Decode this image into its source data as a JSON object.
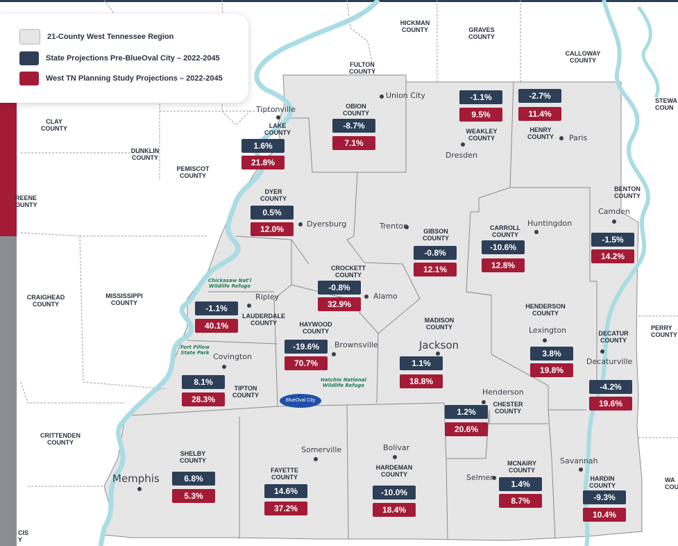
{
  "legend": {
    "region": "21-County West Tennessee Region",
    "state": "State Projections Pre-BlueOval City – 2022-2045",
    "study": "West TN Planning Study Projections – 2022-2045"
  },
  "colors": {
    "region_fill": "#e6e6e6",
    "state_badge": "#2d3e57",
    "study_badge": "#a31b36",
    "river": "#a9dce3"
  },
  "region_counties": [
    {
      "name": "LAKE\nCOUNTY",
      "state": "1.6%",
      "study": "21.8%"
    },
    {
      "name": "OBION\nCOUNTY",
      "state": "-8.7%",
      "study": "7.1%"
    },
    {
      "name": "WEAKLEY\nCOUNTY",
      "state": "-1.1%",
      "study": "9.5%"
    },
    {
      "name": "HENRY\nCOUNTY",
      "state": "-2.7%",
      "study": "11.4%"
    },
    {
      "name": "DYER\nCOUNTY",
      "state": "0.5%",
      "study": "12.0%"
    },
    {
      "name": "GIBSON\nCOUNTY",
      "state": "-0.8%",
      "study": "12.1%"
    },
    {
      "name": "CARROLL\nCOUNTY",
      "state": "-10.6%",
      "study": "12.8%"
    },
    {
      "name": "BENTON\nCOUNTY",
      "state": "-1.5%",
      "study": "14.2%"
    },
    {
      "name": "CROCKETT\nCOUNTY",
      "state": "-0.8%",
      "study": "32.9%"
    },
    {
      "name": "LAUDERDALE\nCOUNTY",
      "state": "-1.1%",
      "study": "40.1%"
    },
    {
      "name": "HAYWOOD\nCOUNTY",
      "state": "-19.6%",
      "study": "70.7%"
    },
    {
      "name": "MADISON\nCOUNTY",
      "state": "1.1%",
      "study": "18.8%"
    },
    {
      "name": "HENDERSON\nCOUNTY",
      "state": "3.8%",
      "study": "19.8%"
    },
    {
      "name": "DECATUR\nCOUNTY",
      "state": "-4.2%",
      "study": "19.6%"
    },
    {
      "name": "TIPTON\nCOUNTY",
      "state": "8.1%",
      "study": "28.3%"
    },
    {
      "name": "CHESTER\nCOUNTY",
      "state": "1.2%",
      "study": "20.6%"
    },
    {
      "name": "SHELBY\nCOUNTY",
      "state": "6.8%",
      "study": "5.3%"
    },
    {
      "name": "FAYETTE\nCOUNTY",
      "state": "14.6%",
      "study": "37.2%"
    },
    {
      "name": "HARDEMAN\nCOUNTY",
      "state": "-10.0%",
      "study": "18.4%"
    },
    {
      "name": "MCNAIRY\nCOUNTY",
      "state": "1.4%",
      "study": "8.7%"
    },
    {
      "name": "HARDIN\nCOUNTY",
      "state": "-9.3%",
      "study": "10.4%"
    }
  ],
  "other_counties": [
    "HICKMAN\nCOUNTY",
    "GRAVES\nCOUNTY",
    "CALLOWAY\nCOUNTY",
    "FULTON\nCOUNTY",
    "STEWA\nCOUN",
    "CLAY\nCOUNTY",
    "DUNKLIN\nCOUNTY",
    "PEMISCOT\nCOUNTY",
    "REENE\nOUNTY",
    "CRAIGHEAD\nCOUNTY",
    "MISSISSIPPI\nCOUNTY",
    "PERRY\nCOUNTY",
    "CRITTENDEN\nCOUNTY",
    "WA\nCOU",
    "CIS\nY"
  ],
  "cities": [
    "Union City",
    "Tiptonville",
    "Paris",
    "Dresden",
    "Dyersburg",
    "Trenton",
    "Huntingdon",
    "Camden",
    "Ripley",
    "Alamo",
    "Brownsville",
    "Jackson",
    "Lexington",
    "Decaturville",
    "Covington",
    "Henderson",
    "Somerville",
    "Bolivar",
    "Memphis",
    "Selmer",
    "Savannah"
  ],
  "refuges": [
    "Chickasaw Nat'l\nWildlife Refuge",
    "Fort Pillow\nState Park",
    "Hatchie National\nWildlife Refuge"
  ],
  "logo_text": "BlueOval City"
}
